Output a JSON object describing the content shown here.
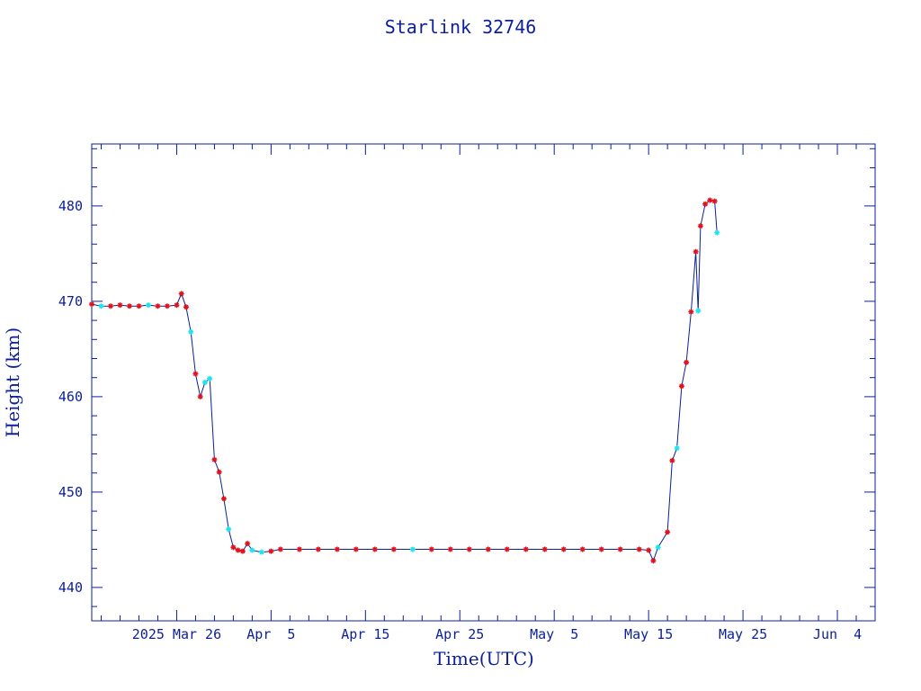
{
  "colors": {
    "axes": "#0b1f99",
    "line": "#0b1f99",
    "marker_primary": "#e0121b",
    "marker_secondary": "#1ee3f0"
  },
  "chart_data": {
    "type": "line",
    "title": "Starlink 32746",
    "xlabel": "Time(UTC)",
    "ylabel": "Height (km)",
    "xlim": [
      "2025-03-17",
      "2025-06-08"
    ],
    "ylim": [
      436.5,
      486.5
    ],
    "y_ticks": [
      440,
      450,
      460,
      470,
      480
    ],
    "y_tick_labels": [
      "440",
      "450",
      "460",
      "470",
      "480"
    ],
    "x_ticks": [
      "2025-03-26",
      "2025-04-05",
      "2025-04-15",
      "2025-04-25",
      "2025-05-05",
      "2025-05-15",
      "2025-05-25",
      "2025-06-04"
    ],
    "x_tick_labels": [
      "2025 Mar 26",
      "Apr  5",
      "Apr 15",
      "Apr 25",
      "May  5",
      "May 15",
      "May 25",
      "Jun  4"
    ],
    "grid": false,
    "markers": {
      "primary": "star",
      "secondary": "star"
    },
    "series": [
      {
        "x": [
          "2025-03-17",
          "2025-03-18",
          "2025-03-19",
          "2025-03-20",
          "2025-03-21",
          "2025-03-22",
          "2025-03-23",
          "2025-03-24",
          "2025-03-25",
          "2025-03-26",
          "2025-03-26 12:00",
          "2025-03-27",
          "2025-03-27 12:00",
          "2025-03-28",
          "2025-03-28 12:00",
          "2025-03-29",
          "2025-03-29 12:00",
          "2025-03-30",
          "2025-03-30 12:00",
          "2025-03-31",
          "2025-03-31 12:00",
          "2025-04-01",
          "2025-04-01 12:00",
          "2025-04-02",
          "2025-04-02 12:00",
          "2025-04-03",
          "2025-04-04",
          "2025-04-05",
          "2025-04-06",
          "2025-04-08",
          "2025-04-10",
          "2025-04-12",
          "2025-04-14",
          "2025-04-16",
          "2025-04-18",
          "2025-04-20",
          "2025-04-22",
          "2025-04-24",
          "2025-04-26",
          "2025-04-28",
          "2025-04-30",
          "2025-05-02",
          "2025-05-04",
          "2025-05-06",
          "2025-05-08",
          "2025-05-10",
          "2025-05-12",
          "2025-05-14",
          "2025-05-15",
          "2025-05-15 12:00",
          "2025-05-16",
          "2025-05-17",
          "2025-05-17 12:00",
          "2025-05-18",
          "2025-05-18 12:00",
          "2025-05-19",
          "2025-05-19 12:00",
          "2025-05-20",
          "2025-05-20 06:00",
          "2025-05-20 12:00",
          "2025-05-21",
          "2025-05-21 12:00",
          "2025-05-22",
          "2025-05-22 06:00"
        ],
        "y": [
          469.7,
          469.5,
          469.5,
          469.6,
          469.5,
          469.5,
          469.6,
          469.5,
          469.5,
          469.6,
          470.8,
          469.4,
          466.8,
          462.4,
          460.0,
          461.5,
          461.9,
          453.4,
          452.1,
          449.3,
          446.1,
          444.2,
          443.9,
          443.8,
          444.6,
          443.9,
          443.7,
          443.8,
          444.0,
          444.0,
          444.0,
          444.0,
          444.0,
          444.0,
          444.0,
          444.0,
          444.0,
          444.0,
          444.0,
          444.0,
          444.0,
          444.0,
          444.0,
          444.0,
          444.0,
          444.0,
          444.0,
          444.0,
          443.9,
          442.8,
          444.2,
          445.8,
          453.3,
          454.6,
          461.1,
          463.6,
          468.9,
          475.2,
          469.0,
          477.9,
          480.2,
          480.6,
          480.5,
          477.2
        ],
        "marker": [
          "primary",
          "secondary",
          "primary",
          "primary",
          "primary",
          "primary",
          "secondary",
          "primary",
          "primary",
          "primary",
          "primary",
          "primary",
          "secondary",
          "primary",
          "primary",
          "secondary",
          "secondary",
          "primary",
          "primary",
          "primary",
          "secondary",
          "primary",
          "primary",
          "primary",
          "primary",
          "secondary",
          "secondary",
          "primary",
          "primary",
          "primary",
          "primary",
          "primary",
          "primary",
          "primary",
          "primary",
          "secondary",
          "primary",
          "primary",
          "primary",
          "primary",
          "primary",
          "primary",
          "primary",
          "primary",
          "primary",
          "primary",
          "primary",
          "primary",
          "primary",
          "primary",
          "secondary",
          "primary",
          "primary",
          "secondary",
          "primary",
          "primary",
          "primary",
          "primary",
          "secondary",
          "primary",
          "primary",
          "primary",
          "primary",
          "secondary"
        ]
      }
    ]
  }
}
